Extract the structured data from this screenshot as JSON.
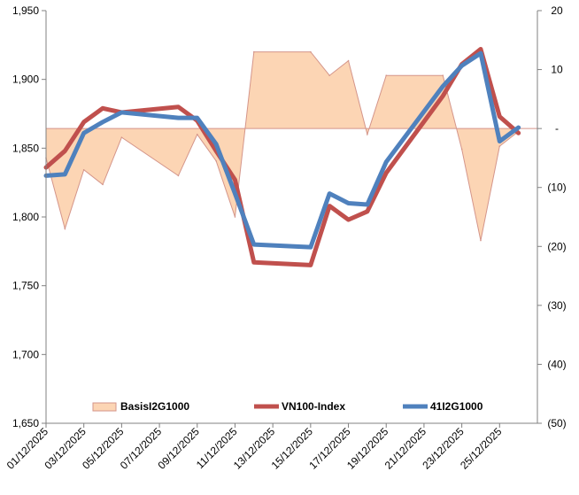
{
  "chart_data": {
    "type": "line",
    "title": "",
    "x": [
      "01/12/2025",
      "02/12/2025",
      "03/12/2025",
      "04/12/2025",
      "05/12/2025",
      "08/12/2025",
      "09/12/2025",
      "10/12/2025",
      "11/12/2025",
      "12/12/2025",
      "15/12/2025",
      "16/12/2025",
      "17/12/2025",
      "18/12/2025",
      "19/12/2025",
      "22/12/2025",
      "23/12/2025",
      "24/12/2025",
      "25/12/2025",
      "26/12/2025"
    ],
    "x_dates": [
      "2025-12-01",
      "2025-12-02",
      "2025-12-03",
      "2025-12-04",
      "2025-12-05",
      "2025-12-08",
      "2025-12-09",
      "2025-12-10",
      "2025-12-11",
      "2025-12-12",
      "2025-12-15",
      "2025-12-16",
      "2025-12-17",
      "2025-12-18",
      "2025-12-19",
      "2025-12-22",
      "2025-12-23",
      "2025-12-24",
      "2025-12-25",
      "2025-12-26"
    ],
    "x_ticks": [
      "01/12/2025",
      "03/12/2025",
      "05/12/2025",
      "07/12/2025",
      "09/12/2025",
      "11/12/2025",
      "13/12/2025",
      "15/12/2025",
      "17/12/2025",
      "19/12/2025",
      "21/12/2025",
      "23/12/2025",
      "25/12/2025"
    ],
    "x_ticks_dates": [
      "2025-12-01",
      "2025-12-03",
      "2025-12-05",
      "2025-12-07",
      "2025-12-09",
      "2025-12-11",
      "2025-12-13",
      "2025-12-15",
      "2025-12-17",
      "2025-12-19",
      "2025-12-21",
      "2025-12-23",
      "2025-12-25"
    ],
    "x_range_dates": [
      "2025-12-01",
      "2025-12-27"
    ],
    "y_left": {
      "min": 1650,
      "max": 1950,
      "ticks": [
        "1,650",
        "1,700",
        "1,750",
        "1,800",
        "1,850",
        "1,900",
        "1,950"
      ],
      "tick_values": [
        1650,
        1700,
        1750,
        1800,
        1850,
        1900,
        1950
      ]
    },
    "y_right": {
      "min": -50,
      "max": 20,
      "ticks": [
        "(50)",
        "(40)",
        "(30)",
        "(20)",
        "(10)",
        "-",
        "10",
        "20"
      ],
      "tick_values": [
        -50,
        -40,
        -30,
        -20,
        -10,
        0,
        10,
        20
      ]
    },
    "series": [
      {
        "name": "BasisI2G1000",
        "type": "area",
        "axis": "right",
        "color": "#fcd5b4",
        "edge_color": "#d4958a",
        "values": [
          -5,
          -17,
          -7,
          -9.5,
          -1.5,
          -8,
          -1,
          -5.5,
          -15,
          13,
          13,
          9,
          11.5,
          -1,
          9,
          9,
          -3.5,
          -19,
          -3,
          -0.5
        ]
      },
      {
        "name": "VN100-Index",
        "type": "line",
        "axis": "left",
        "color": "#c0504d",
        "values": [
          1836,
          1848,
          1869,
          1879,
          1876,
          1880,
          1870,
          1848,
          1827,
          1767,
          1765,
          1808,
          1798,
          1804,
          1832,
          1888,
          1911,
          1922,
          1873,
          1861
        ]
      },
      {
        "name": "41I2G1000",
        "type": "line",
        "axis": "left",
        "color": "#4f81bd",
        "values": [
          1830,
          1831,
          1861,
          1869,
          1876,
          1872,
          1872,
          1853,
          1817,
          1780,
          1778,
          1817,
          1810,
          1809,
          1840,
          1895,
          1910,
          1919,
          1855,
          1865
        ]
      }
    ],
    "legend": {
      "position": "bottom-inside",
      "entries": [
        "BasisI2G1000",
        "VN100-Index",
        "41I2G1000"
      ]
    },
    "grid": false
  }
}
